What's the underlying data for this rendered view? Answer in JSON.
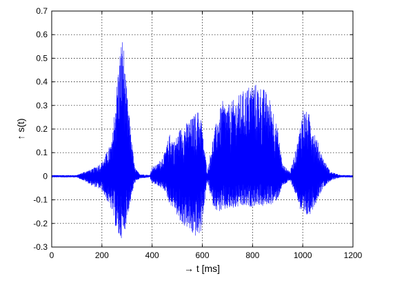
{
  "chart_data": {
    "type": "line",
    "title": "",
    "xlabel": "→ t [ms]",
    "ylabel": "↑ s(t)",
    "xlim": [
      0,
      1200
    ],
    "ylim": [
      -0.3,
      0.7
    ],
    "xticks": [
      0,
      200,
      400,
      600,
      800,
      1000,
      1200
    ],
    "yticks": [
      -0.3,
      -0.2,
      -0.1,
      0,
      0.1,
      0.2,
      0.3,
      0.4,
      0.5,
      0.6,
      0.7
    ],
    "xtick_labels": [
      "0",
      "200",
      "400",
      "600",
      "800",
      "1000",
      "1200"
    ],
    "ytick_labels": [
      "-0.3",
      "-0.2",
      "-0.1",
      "0",
      "0.1",
      "0.2",
      "0.3",
      "0.4",
      "0.5",
      "0.6",
      "0.7"
    ],
    "grid": true,
    "line_color": "#0000ff",
    "series": [
      {
        "envelope_x": [
          0,
          100,
          130,
          160,
          200,
          240,
          255,
          270,
          280,
          285,
          290,
          300,
          320,
          330,
          350,
          390,
          400,
          420,
          450,
          470,
          490,
          510,
          540,
          560,
          580,
          595,
          605,
          620,
          640,
          660,
          680,
          700,
          720,
          750,
          780,
          800,
          820,
          840,
          860,
          880,
          900,
          920,
          950,
          980,
          1000,
          1010,
          1030,
          1050,
          1080,
          1110,
          1150,
          1200
        ],
        "envelope_upper": [
          0.005,
          0.005,
          0.02,
          0.03,
          0.06,
          0.15,
          0.35,
          0.52,
          0.6,
          0.58,
          0.5,
          0.35,
          0.15,
          0.04,
          0.01,
          0.005,
          0.04,
          0.05,
          0.1,
          0.18,
          0.15,
          0.2,
          0.23,
          0.25,
          0.28,
          0.26,
          0.15,
          0.02,
          0.15,
          0.25,
          0.32,
          0.3,
          0.32,
          0.35,
          0.38,
          0.4,
          0.39,
          0.38,
          0.35,
          0.3,
          0.2,
          0.05,
          0.02,
          0.15,
          0.29,
          0.28,
          0.26,
          0.18,
          0.08,
          0.02,
          0.005,
          0.005
        ],
        "envelope_lower": [
          -0.005,
          -0.005,
          -0.02,
          -0.04,
          -0.06,
          -0.15,
          -0.22,
          -0.27,
          -0.26,
          -0.25,
          -0.24,
          -0.18,
          -0.08,
          -0.03,
          -0.01,
          -0.005,
          -0.03,
          -0.04,
          -0.06,
          -0.12,
          -0.14,
          -0.2,
          -0.22,
          -0.25,
          -0.26,
          -0.24,
          -0.15,
          -0.02,
          -0.12,
          -0.15,
          -0.15,
          -0.14,
          -0.14,
          -0.13,
          -0.13,
          -0.13,
          -0.12,
          -0.13,
          -0.12,
          -0.12,
          -0.1,
          -0.04,
          -0.02,
          -0.1,
          -0.19,
          -0.18,
          -0.16,
          -0.12,
          -0.05,
          -0.02,
          -0.005,
          -0.005
        ]
      }
    ]
  }
}
